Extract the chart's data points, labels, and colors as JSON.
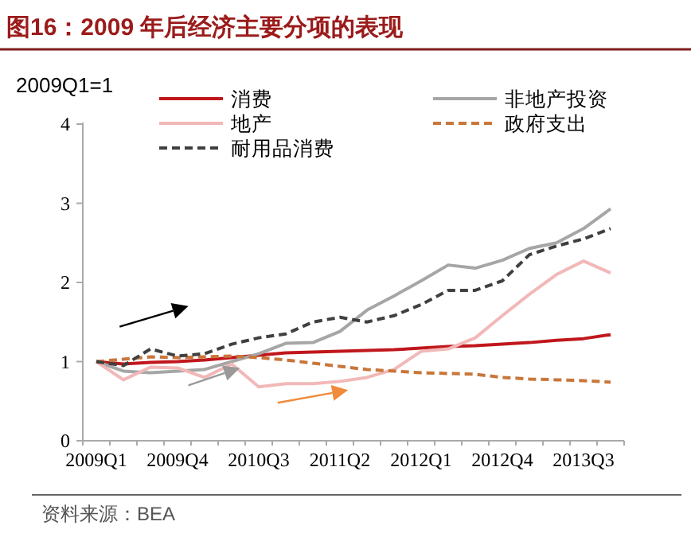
{
  "chart_data": {
    "type": "line",
    "title": "图16：2009 年后经济主要分项的表现",
    "ylabel": "2009Q1=1",
    "annotations": [
      "资料来源：BEA"
    ],
    "categories": [
      "2009Q1",
      null,
      null,
      "2009Q4",
      null,
      null,
      "2010Q3",
      null,
      null,
      "2011Q2",
      null,
      null,
      "2012Q1",
      null,
      null,
      "2012Q4",
      null,
      null,
      "2013Q3",
      null
    ],
    "series": [
      {
        "name": "消费",
        "color": "#c0171c",
        "line_style": "solid",
        "values": [
          1,
          0.97,
          0.99,
          1.0,
          1.02,
          1.05,
          1.08,
          1.11,
          1.12,
          1.13,
          1.14,
          1.15,
          1.17,
          1.19,
          1.2,
          1.22,
          1.24,
          1.27,
          1.29,
          1.34
        ]
      },
      {
        "name": "非地产投资",
        "color": "#a6a6a6",
        "line_style": "solid",
        "values": [
          1,
          0.88,
          0.86,
          0.88,
          0.9,
          1.0,
          1.1,
          1.23,
          1.24,
          1.38,
          1.65,
          1.83,
          2.02,
          2.22,
          2.18,
          2.28,
          2.43,
          2.5,
          2.68,
          2.93
        ]
      },
      {
        "name": "地产",
        "color": "#f2b8b8",
        "line_style": "solid",
        "values": [
          1,
          0.77,
          0.93,
          0.92,
          0.8,
          0.97,
          0.68,
          0.72,
          0.72,
          0.75,
          0.8,
          0.9,
          1.13,
          1.16,
          1.3,
          1.58,
          1.85,
          2.1,
          2.27,
          2.12
        ]
      },
      {
        "name": "政府支出",
        "color": "#c8763a",
        "line_style": "dashed",
        "values": [
          1,
          1.03,
          1.06,
          1.05,
          1.06,
          1.07,
          1.05,
          1.02,
          0.98,
          0.94,
          0.9,
          0.88,
          0.86,
          0.85,
          0.84,
          0.8,
          0.78,
          0.77,
          0.76,
          0.74
        ]
      },
      {
        "name": "耐用品消费",
        "color": "#404040",
        "line_style": "dashed",
        "values": [
          1,
          0.95,
          1.16,
          1.07,
          1.1,
          1.22,
          1.3,
          1.35,
          1.5,
          1.56,
          1.5,
          1.58,
          1.72,
          1.9,
          1.9,
          2.02,
          2.35,
          2.46,
          2.55,
          2.68
        ]
      }
    ],
    "ylim": [
      0,
      4
    ],
    "yticks": [
      0,
      1,
      2,
      3,
      4
    ],
    "grid": false,
    "legend": "top",
    "marker": "none"
  }
}
